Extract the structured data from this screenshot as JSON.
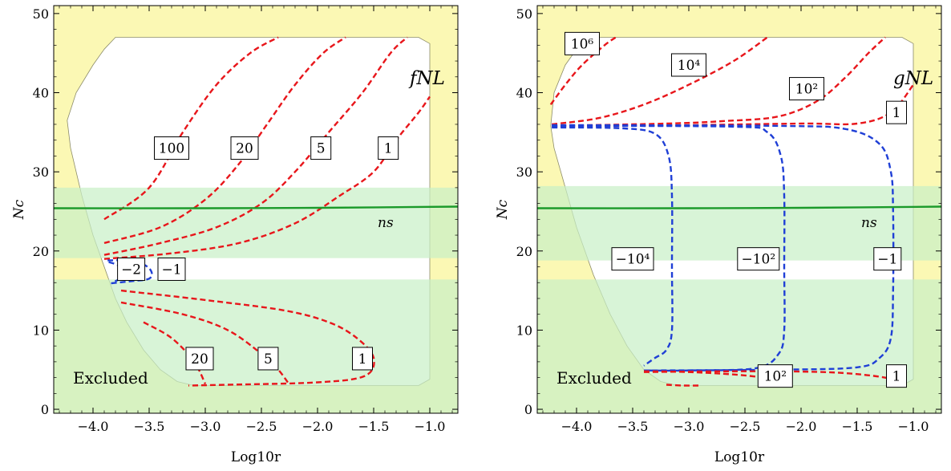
{
  "chart_data": [
    {
      "type": "contour",
      "id": "left",
      "xlabel": "Log10r",
      "ylabel": "Nc",
      "xlim": [
        -4.35,
        -0.75
      ],
      "ylim": [
        -0.5,
        51
      ],
      "xticks": [
        "−4.0",
        "−3.5",
        "−3.0",
        "−2.5",
        "−2.0",
        "−1.5",
        "−1.0"
      ],
      "xtick_values": [
        -4.0,
        -3.5,
        -3.0,
        -2.5,
        -2.0,
        -1.5,
        -1.0
      ],
      "yticks": [
        "0",
        "10",
        "20",
        "30",
        "40",
        "50"
      ],
      "ytick_values": [
        0,
        10,
        20,
        30,
        40,
        50
      ],
      "quantity_label": "fNL",
      "ns_label": "ns",
      "excluded_label": "Excluded",
      "ns_line": [
        [
          -4.35,
          25.4
        ],
        [
          -3.0,
          25.4
        ],
        [
          -2.0,
          25.45
        ],
        [
          -0.75,
          25.6
        ]
      ],
      "ns_bands": [
        [
          19.1,
          28.0
        ],
        [
          -0.5,
          16.4
        ]
      ],
      "allowed_region": [
        [
          -4.23,
          36.5
        ],
        [
          -4.15,
          40
        ],
        [
          -4.0,
          43.5
        ],
        [
          -3.9,
          45.5
        ],
        [
          -3.8,
          47
        ],
        [
          -1.1,
          47
        ],
        [
          -1.0,
          46.2
        ],
        [
          -1.0,
          3.8
        ],
        [
          -1.1,
          3.0
        ],
        [
          -3.1,
          3.0
        ],
        [
          -3.25,
          3.5
        ],
        [
          -3.4,
          5
        ],
        [
          -3.55,
          7.5
        ],
        [
          -3.7,
          11
        ],
        [
          -3.8,
          14
        ],
        [
          -3.9,
          18
        ],
        [
          -4.0,
          22
        ],
        [
          -4.1,
          27
        ],
        [
          -4.2,
          33
        ]
      ],
      "contours": [
        {
          "level": "100",
          "color": "#e8161b",
          "points": [
            [
              -3.9,
              24
            ],
            [
              -3.5,
              28
            ],
            [
              -3.2,
              35
            ],
            [
              -2.9,
              41
            ],
            [
              -2.6,
              45
            ],
            [
              -2.35,
              47
            ]
          ]
        },
        {
          "level": "20",
          "color": "#e8161b",
          "points": [
            [
              -3.9,
              21
            ],
            [
              -3.4,
              23
            ],
            [
              -3.0,
              26.5
            ],
            [
              -2.7,
              31
            ],
            [
              -2.45,
              36
            ],
            [
              -2.2,
              41
            ],
            [
              -1.95,
              45
            ],
            [
              -1.75,
              47
            ]
          ]
        },
        {
          "level": "5",
          "color": "#e8161b",
          "points": [
            [
              -3.9,
              19.5
            ],
            [
              -3.4,
              21
            ],
            [
              -2.9,
              23
            ],
            [
              -2.5,
              26
            ],
            [
              -2.2,
              30
            ],
            [
              -1.9,
              35
            ],
            [
              -1.6,
              40
            ],
            [
              -1.35,
              45
            ],
            [
              -1.2,
              47
            ]
          ]
        },
        {
          "level": "1",
          "color": "#e8161b",
          "points": [
            [
              -3.9,
              19.0
            ],
            [
              -3.3,
              19.7
            ],
            [
              -2.7,
              21
            ],
            [
              -2.2,
              23.5
            ],
            [
              -1.8,
              27
            ],
            [
              -1.5,
              30
            ],
            [
              -1.3,
              34
            ],
            [
              -1.1,
              37.5
            ],
            [
              -1.0,
              39.5
            ]
          ]
        },
        {
          "level": "−2",
          "color": "#1f3fd6",
          "points": [
            [
              -3.86,
              18.6
            ],
            [
              -3.78,
              18.2
            ],
            [
              -3.73,
              17.4
            ],
            [
              -3.75,
              16.6
            ],
            [
              -3.83,
              16.0
            ]
          ]
        },
        {
          "level": "−1",
          "color": "#1f3fd6",
          "points": [
            [
              -3.87,
              18.8
            ],
            [
              -3.7,
              18.8
            ],
            [
              -3.55,
              18.3
            ],
            [
              -3.48,
              17.4
            ],
            [
              -3.5,
              16.5
            ],
            [
              -3.65,
              16.2
            ],
            [
              -3.85,
              15.9
            ]
          ]
        },
        {
          "level": "20",
          "color": "#e8161b",
          "points": [
            [
              -3.55,
              11
            ],
            [
              -3.3,
              9
            ],
            [
              -3.1,
              6
            ],
            [
              -3.0,
              3.2
            ]
          ]
        },
        {
          "level": "5",
          "color": "#e8161b",
          "points": [
            [
              -3.75,
              13.5
            ],
            [
              -3.2,
              12
            ],
            [
              -2.8,
              10
            ],
            [
              -2.5,
              7
            ],
            [
              -2.35,
              5
            ],
            [
              -2.25,
              3.1
            ]
          ]
        },
        {
          "level": "1",
          "color": "#e8161b",
          "points": [
            [
              -3.75,
              15
            ],
            [
              -3.0,
              13.8
            ],
            [
              -2.3,
              12.5
            ],
            [
              -1.9,
              11
            ],
            [
              -1.65,
              9
            ],
            [
              -1.5,
              6.5
            ],
            [
              -1.58,
              4.2
            ],
            [
              -2.0,
              3.4
            ],
            [
              -2.8,
              3.1
            ],
            [
              -3.15,
              3.0
            ]
          ]
        }
      ],
      "labels": [
        {
          "text": "100",
          "x": -3.3,
          "y": 33
        },
        {
          "text": "20",
          "x": -2.65,
          "y": 33
        },
        {
          "text": "5",
          "x": -1.97,
          "y": 33
        },
        {
          "text": "1",
          "x": -1.37,
          "y": 33
        },
        {
          "text": "−2",
          "x": -3.66,
          "y": 17.7
        },
        {
          "text": "−1",
          "x": -3.3,
          "y": 17.7
        },
        {
          "text": "20",
          "x": -3.05,
          "y": 6.4
        },
        {
          "text": "5",
          "x": -2.44,
          "y": 6.4
        },
        {
          "text": "1",
          "x": -1.6,
          "y": 6.4
        }
      ]
    },
    {
      "type": "contour",
      "id": "right",
      "xlabel": "Log10r",
      "ylabel": "Nc",
      "xlim": [
        -4.35,
        -0.75
      ],
      "ylim": [
        -0.5,
        51
      ],
      "xticks": [
        "−4.0",
        "−3.5",
        "−3.0",
        "−2.5",
        "−2.0",
        "−1.5",
        "−1.0"
      ],
      "xtick_values": [
        -4.0,
        -3.5,
        -3.0,
        -2.5,
        -2.0,
        -1.5,
        -1.0
      ],
      "yticks": [
        "0",
        "10",
        "20",
        "30",
        "40",
        "50"
      ],
      "ytick_values": [
        0,
        10,
        20,
        30,
        40,
        50
      ],
      "quantity_label": "gNL",
      "ns_label": "ns",
      "excluded_label": "Excluded",
      "ns_line": [
        [
          -4.35,
          25.4
        ],
        [
          -3.0,
          25.4
        ],
        [
          -2.0,
          25.45
        ],
        [
          -0.75,
          25.6
        ]
      ],
      "ns_bands": [
        [
          18.8,
          28.2
        ],
        [
          -0.5,
          16.4
        ]
      ],
      "allowed_region": [
        [
          -4.23,
          35.8
        ],
        [
          -4.2,
          40
        ],
        [
          -4.1,
          43.5
        ],
        [
          -4.0,
          45.5
        ],
        [
          -3.9,
          47
        ],
        [
          -1.1,
          47
        ],
        [
          -1.0,
          46.2
        ],
        [
          -1.0,
          3.8
        ],
        [
          -1.1,
          3.0
        ],
        [
          -3.1,
          3.0
        ],
        [
          -3.25,
          3.5
        ],
        [
          -3.4,
          5
        ],
        [
          -3.55,
          8
        ],
        [
          -3.7,
          12
        ],
        [
          -3.85,
          17
        ],
        [
          -4.0,
          23
        ],
        [
          -4.1,
          28
        ],
        [
          -4.2,
          33
        ]
      ],
      "contours": [
        {
          "level": "10⁶",
          "color": "#e8161b",
          "points": [
            [
              -4.23,
              38.5
            ],
            [
              -4.1,
              41
            ],
            [
              -3.95,
              43.5
            ],
            [
              -3.75,
              46
            ],
            [
              -3.65,
              47
            ]
          ]
        },
        {
          "level": "10⁴",
          "color": "#e8161b",
          "points": [
            [
              -4.22,
              36
            ],
            [
              -3.8,
              36.8
            ],
            [
              -3.4,
              38.5
            ],
            [
              -3.0,
              41
            ],
            [
              -2.6,
              44
            ],
            [
              -2.3,
              47
            ]
          ]
        },
        {
          "level": "10²",
          "color": "#e8161b",
          "points": [
            [
              -4.22,
              35.8
            ],
            [
              -3.2,
              36.1
            ],
            [
              -2.7,
              36.4
            ],
            [
              -2.2,
              37
            ],
            [
              -1.85,
              39
            ],
            [
              -1.6,
              42
            ],
            [
              -1.4,
              45
            ],
            [
              -1.25,
              47
            ]
          ]
        },
        {
          "level": "1",
          "color": "#e8161b",
          "points": [
            [
              -4.22,
              35.7
            ],
            [
              -3.0,
              35.9
            ],
            [
              -2.0,
              36.1
            ],
            [
              -1.5,
              36.1
            ],
            [
              -1.2,
              37.5
            ],
            [
              -1.0,
              41
            ]
          ]
        },
        {
          "level": "−10⁴",
          "color": "#1f3fd6",
          "points": [
            [
              -4.22,
              35.6
            ],
            [
              -3.6,
              35.5
            ],
            [
              -3.3,
              34.8
            ],
            [
              -3.18,
              32
            ],
            [
              -3.15,
              27
            ],
            [
              -3.15,
              18
            ],
            [
              -3.15,
              10
            ],
            [
              -3.2,
              7.5
            ],
            [
              -3.3,
              6.5
            ],
            [
              -3.4,
              5.5
            ]
          ]
        },
        {
          "level": "−10²",
          "color": "#1f3fd6",
          "points": [
            [
              -4.22,
              35.8
            ],
            [
              -2.6,
              35.7
            ],
            [
              -2.3,
              35.0
            ],
            [
              -2.18,
              32
            ],
            [
              -2.15,
              27
            ],
            [
              -2.15,
              18
            ],
            [
              -2.15,
              10
            ],
            [
              -2.2,
              7
            ],
            [
              -2.4,
              5.2
            ],
            [
              -3.0,
              4.9
            ],
            [
              -3.4,
              4.9
            ]
          ]
        },
        {
          "level": "−1",
          "color": "#1f3fd6",
          "points": [
            [
              -4.22,
              35.9
            ],
            [
              -2.2,
              35.8
            ],
            [
              -1.6,
              35.4
            ],
            [
              -1.3,
              33.5
            ],
            [
              -1.2,
              30
            ],
            [
              -1.18,
              25
            ],
            [
              -1.18,
              15
            ],
            [
              -1.2,
              9
            ],
            [
              -1.3,
              6.5
            ],
            [
              -1.5,
              5.3
            ],
            [
              -2.2,
              5.0
            ],
            [
              -3.4,
              4.9
            ]
          ]
        },
        {
          "level": "10²",
          "color": "#e8161b",
          "points": [
            [
              -3.4,
              4.8
            ],
            [
              -3.0,
              4.7
            ],
            [
              -2.6,
              4.4
            ],
            [
              -2.3,
              3.9
            ],
            [
              -2.15,
              3.1
            ]
          ]
        },
        {
          "level": "1",
          "color": "#e8161b",
          "points": [
            [
              -3.4,
              4.7
            ],
            [
              -2.5,
              4.8
            ],
            [
              -1.8,
              4.7
            ],
            [
              -1.4,
              4.3
            ],
            [
              -1.15,
              3.7
            ],
            [
              -1.1,
              3.1
            ]
          ]
        },
        {
          "level": "",
          "color": "#e8161b",
          "points": [
            [
              -3.2,
              3.1
            ],
            [
              -3.05,
              3.0
            ],
            [
              -2.9,
              3.0
            ]
          ]
        }
      ],
      "labels": [
        {
          "text": "10⁶",
          "x": -3.95,
          "y": 46.2
        },
        {
          "text": "10⁴",
          "x": -3.0,
          "y": 43.5
        },
        {
          "text": "10²",
          "x": -1.95,
          "y": 40.5
        },
        {
          "text": "1",
          "x": -1.15,
          "y": 37.5
        },
        {
          "text": "−10⁴",
          "x": -3.5,
          "y": 19
        },
        {
          "text": "−10²",
          "x": -2.38,
          "y": 19
        },
        {
          "text": "−1",
          "x": -1.23,
          "y": 19
        },
        {
          "text": "10²",
          "x": -2.23,
          "y": 4.2
        },
        {
          "text": "1",
          "x": -1.15,
          "y": 4.2
        }
      ]
    }
  ]
}
